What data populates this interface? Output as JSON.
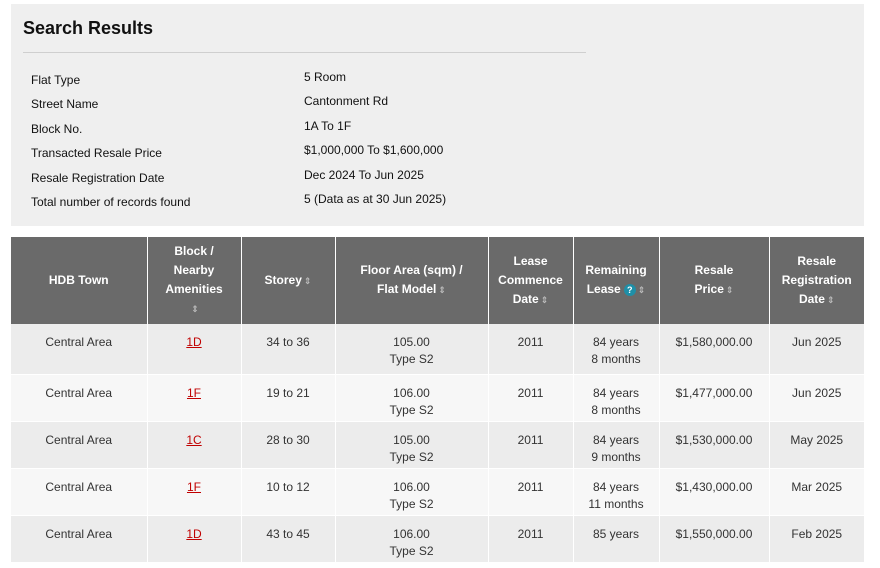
{
  "summary": {
    "title": "Search Results",
    "criteria": [
      {
        "label": "Flat Type",
        "value": "5 Room"
      },
      {
        "label": "Street Name",
        "value": "Cantonment Rd"
      },
      {
        "label": "Block No.",
        "value": "1A  To 1F"
      },
      {
        "label": "Transacted Resale Price",
        "value": "$1,000,000  To $1,600,000"
      },
      {
        "label": "Resale Registration Date",
        "value": "Dec 2024 To Jun 2025"
      },
      {
        "label": "Total number of records found",
        "value": "5 (Data as at 30 Jun 2025)"
      }
    ]
  },
  "table": {
    "headers": {
      "town": "HDB Town",
      "block_l1": "Block /",
      "block_l2": "Nearby",
      "block_l3": "Amenities",
      "storey": "Storey",
      "area_l1": "Floor Area (sqm) /",
      "area_l2": "Flat Model",
      "lease_l1": "Lease",
      "lease_l2": "Commence",
      "lease_l3": "Date",
      "remaining_l1": "Remaining",
      "remaining_l2": "Lease",
      "price_l1": "Resale",
      "price_l2": "Price",
      "regdate_l1": "Resale",
      "regdate_l2": "Registration",
      "regdate_l3": "Date"
    },
    "icons": {
      "sort": "sort-arrows-icon",
      "help": "help-icon"
    },
    "help_glyph": "?",
    "rows": [
      {
        "town": "Central Area",
        "block": "1D",
        "storey": "34 to 36",
        "area": "105.00",
        "model": "Type S2",
        "lease_start": "2011",
        "remaining_1": "84 years",
        "remaining_2": "8 months",
        "price": "$1,580,000.00",
        "reg_date": "Jun 2025"
      },
      {
        "town": "Central Area",
        "block": "1F",
        "storey": "19 to 21",
        "area": "106.00",
        "model": "Type S2",
        "lease_start": "2011",
        "remaining_1": "84 years",
        "remaining_2": "8 months",
        "price": "$1,477,000.00",
        "reg_date": "Jun 2025"
      },
      {
        "town": "Central Area",
        "block": "1C",
        "storey": "28 to 30",
        "area": "105.00",
        "model": "Type S2",
        "lease_start": "2011",
        "remaining_1": "84 years",
        "remaining_2": "9 months",
        "price": "$1,530,000.00",
        "reg_date": "May 2025"
      },
      {
        "town": "Central Area",
        "block": "1F",
        "storey": "10 to 12",
        "area": "106.00",
        "model": "Type S2",
        "lease_start": "2011",
        "remaining_1": "84 years",
        "remaining_2": "11 months",
        "price": "$1,430,000.00",
        "reg_date": "Mar 2025"
      },
      {
        "town": "Central Area",
        "block": "1D",
        "storey": "43 to 45",
        "area": "106.00",
        "model": "Type S2",
        "lease_start": "2011",
        "remaining_1": "85 years",
        "remaining_2": "",
        "price": "$1,550,000.00",
        "reg_date": "Feb 2025"
      }
    ]
  }
}
